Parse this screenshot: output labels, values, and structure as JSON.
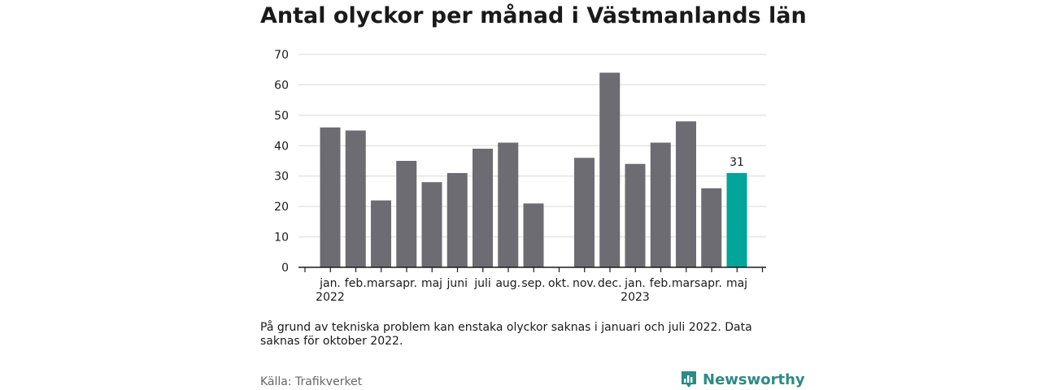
{
  "title": "Antal olyckor per månad i Västmanlands län",
  "note": "På grund av tekniska problem kan enstaka olyckor saknas i januari och juli 2022. Data saknas för oktober 2022.",
  "source": "Källa: Trafikverket",
  "brand": "Newsworthy",
  "colors": {
    "bar": "#6d6c72",
    "highlight": "#00a499",
    "grid": "#d9d9d9",
    "axis": "#1a1a1a",
    "brand": "#2e8a85"
  },
  "chart_data": {
    "type": "bar",
    "categories": [
      "jan.",
      "feb.",
      "mars",
      "apr.",
      "maj",
      "juni",
      "juli",
      "aug.",
      "sep.",
      "okt.",
      "nov.",
      "dec.",
      "jan.",
      "feb.",
      "mars",
      "apr.",
      "maj"
    ],
    "year_labels": [
      {
        "index": 0,
        "label": "2022"
      },
      {
        "index": 12,
        "label": "2023"
      }
    ],
    "values": [
      46,
      45,
      22,
      35,
      28,
      31,
      39,
      41,
      21,
      null,
      36,
      64,
      34,
      41,
      48,
      26,
      31
    ],
    "highlight_index": 16,
    "highlight_label": "31",
    "yticks": [
      "0",
      "10",
      "20",
      "30",
      "40",
      "50",
      "60",
      "70"
    ],
    "ylim": [
      0,
      70
    ],
    "grid": true
  }
}
